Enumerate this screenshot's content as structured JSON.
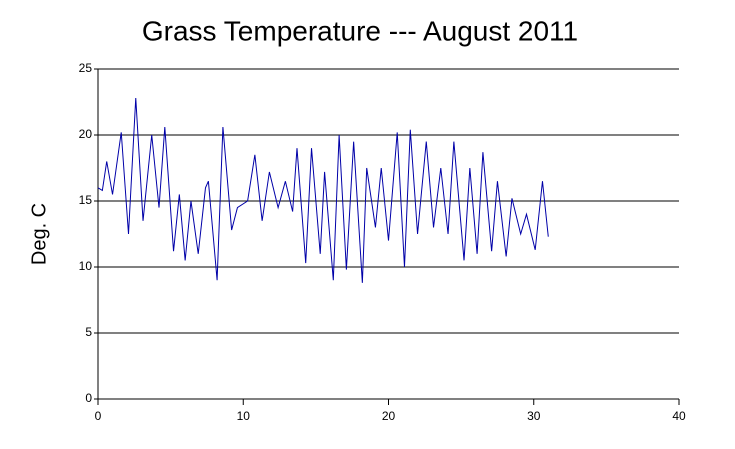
{
  "chart_data": {
    "type": "line",
    "title": "Grass Temperature --- August 2011",
    "y_label": "Deg. C",
    "color": "#0000a8",
    "grid": true,
    "xlim": [
      0,
      40
    ],
    "xticks": [
      0,
      10,
      20,
      30,
      40
    ],
    "ylim": [
      0,
      25
    ],
    "yticks": [
      0,
      5,
      10,
      15,
      20,
      25
    ],
    "x": [
      0,
      0.3,
      0.6,
      1.0,
      1.6,
      2.1,
      2.6,
      3.1,
      3.7,
      4.2,
      4.6,
      5.2,
      5.6,
      6.0,
      6.4,
      6.9,
      7.4,
      7.6,
      8.2,
      8.6,
      9.2,
      9.6,
      10.3,
      10.8,
      11.3,
      11.8,
      12.4,
      12.9,
      13.4,
      13.7,
      14.3,
      14.7,
      15.3,
      15.6,
      16.2,
      16.6,
      17.1,
      17.6,
      18.2,
      18.5,
      19.1,
      19.5,
      20.0,
      20.6,
      21.1,
      21.5,
      22.0,
      22.6,
      23.1,
      23.6,
      24.1,
      24.5,
      25.2,
      25.6,
      26.1,
      26.5,
      27.1,
      27.5,
      28.1,
      28.5,
      29.1,
      29.5,
      30.1,
      30.6,
      31.0
    ],
    "values": [
      16,
      15.8,
      18,
      15.5,
      20.2,
      12.5,
      22.8,
      13.5,
      20,
      14.5,
      20.6,
      11.2,
      15.5,
      10.5,
      15,
      11,
      16,
      16.5,
      9,
      20.6,
      12.8,
      14.5,
      15,
      18.5,
      13.5,
      17.2,
      14.5,
      16.5,
      14.2,
      19,
      10.3,
      19,
      11,
      17.2,
      9,
      20,
      9.8,
      19.5,
      8.8,
      17.5,
      13,
      17.5,
      12,
      20.2,
      10,
      20.4,
      12.5,
      19.5,
      13,
      17.5,
      12.5,
      19.5,
      10.5,
      17.5,
      11,
      18.7,
      11.2,
      16.5,
      10.8,
      15.2,
      12.5,
      14,
      11.3,
      16.5,
      12.3
    ]
  }
}
